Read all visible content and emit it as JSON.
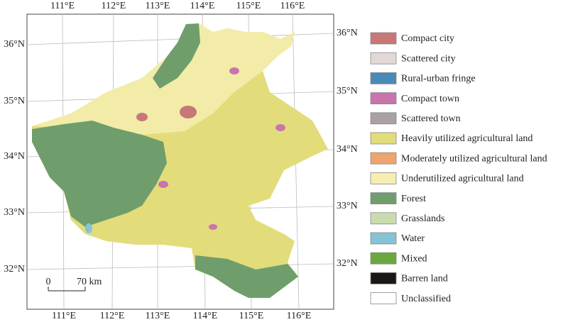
{
  "map": {
    "top_labels": [
      "111°E",
      "112°E",
      "113°E",
      "114°E",
      "115°E",
      "116°E"
    ],
    "bottom_labels": [
      "111°E",
      "112°E",
      "113°E",
      "114°E",
      "115°E",
      "116°E"
    ],
    "left_labels": [
      "36°N",
      "35°N",
      "34°N",
      "33°N",
      "32°N"
    ],
    "right_labels": [
      "36°N",
      "35°N",
      "34°N",
      "33°N",
      "32°N"
    ],
    "scale_bar": {
      "start": "0",
      "end": "70 km"
    }
  },
  "legend": [
    {
      "label": "Compact city",
      "color": "#c87777"
    },
    {
      "label": "Scattered city",
      "color": "#e2d9d6"
    },
    {
      "label": "Rural-urban fringe",
      "color": "#4a8ab8"
    },
    {
      "label": "Compact town",
      "color": "#c874ad"
    },
    {
      "label": "Scattered town",
      "color": "#aaa1a2"
    },
    {
      "label": "Heavily utilized agricultural land",
      "color": "#e2dc7a"
    },
    {
      "label": "Moderately utilized agricultural land",
      "color": "#eea46c"
    },
    {
      "label": "Underutilized agricultural land",
      "color": "#f5eeb0"
    },
    {
      "label": "Forest",
      "color": "#6f9e6c"
    },
    {
      "label": "Grasslands",
      "color": "#c9dcad"
    },
    {
      "label": "Water",
      "color": "#86c3d4"
    },
    {
      "label": "Mixed",
      "color": "#6aa83e"
    },
    {
      "label": "Barren land",
      "color": "#1a1714"
    },
    {
      "label": "Unclassified",
      "color": "#ffffff"
    }
  ]
}
